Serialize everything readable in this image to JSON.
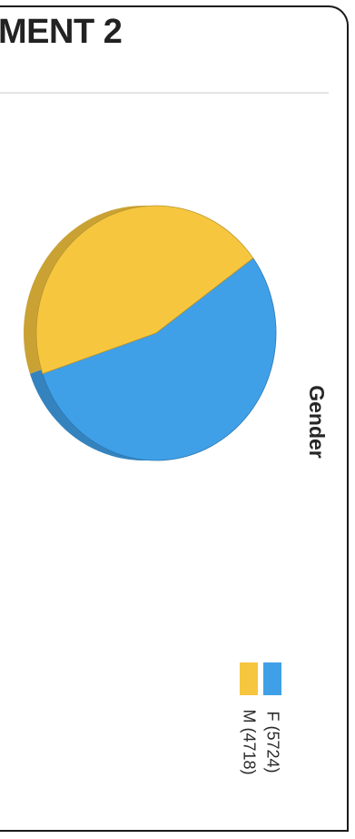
{
  "page": {
    "heading": "MENT 2"
  },
  "chart_data": {
    "type": "pie",
    "title": "Gender",
    "categories": [
      "F",
      "M"
    ],
    "values": [
      5724,
      4718
    ],
    "legend_labels": [
      "F (5724)",
      "M (4718)"
    ],
    "colors": [
      "#3fa0e8",
      "#f6c63f"
    ],
    "legend": "bottom"
  }
}
